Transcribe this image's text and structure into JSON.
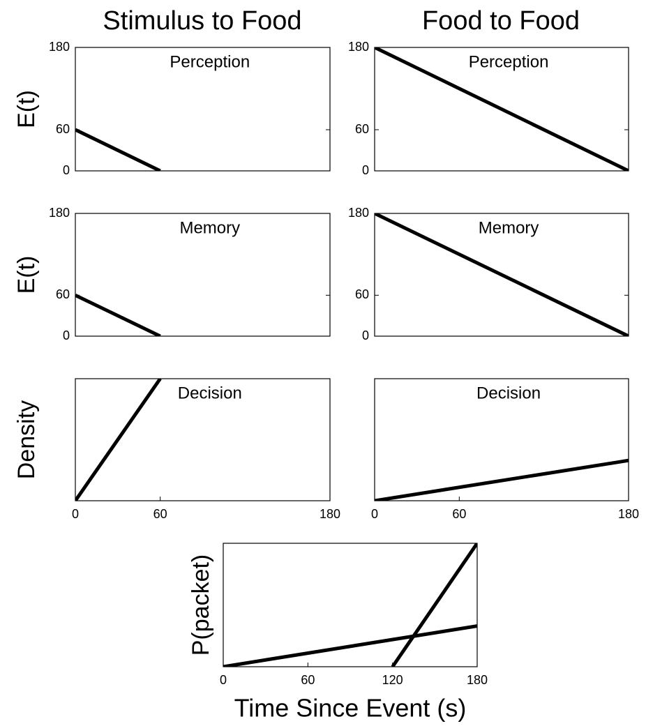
{
  "column_titles": [
    "Stimulus to Food",
    "Food to Food"
  ],
  "chart_data": [
    {
      "type": "line",
      "annotation": "Perception",
      "ylabel": "E(t)",
      "xlim": [
        0,
        180
      ],
      "ylim": [
        0,
        180
      ],
      "yticks": [
        0,
        60,
        180
      ],
      "series": [
        {
          "color": "#000000",
          "x": [
            0,
            60
          ],
          "values": [
            60,
            0
          ]
        }
      ]
    },
    {
      "type": "line",
      "annotation": "Perception",
      "xlim": [
        0,
        180
      ],
      "ylim": [
        0,
        180
      ],
      "yticks": [
        0,
        60,
        180
      ],
      "series": [
        {
          "color": "#000000",
          "x": [
            0,
            180
          ],
          "values": [
            180,
            0
          ]
        }
      ]
    },
    {
      "type": "line",
      "annotation": "Memory",
      "ylabel": "E(t)",
      "xlim": [
        0,
        180
      ],
      "ylim": [
        0,
        180
      ],
      "yticks": [
        0,
        60,
        180
      ],
      "series": [
        {
          "color": "#000000",
          "x": [
            0,
            60
          ],
          "values": [
            60,
            0
          ]
        }
      ]
    },
    {
      "type": "line",
      "annotation": "Memory",
      "xlim": [
        0,
        180
      ],
      "ylim": [
        0,
        180
      ],
      "yticks": [
        0,
        60,
        180
      ],
      "series": [
        {
          "color": "#000000",
          "x": [
            0,
            180
          ],
          "values": [
            180,
            0
          ]
        }
      ]
    },
    {
      "type": "line",
      "annotation": "Decision",
      "ylabel": "Density",
      "xlim": [
        0,
        180
      ],
      "ylim": [
        0,
        1
      ],
      "xticks": [
        0,
        60,
        180
      ],
      "series": [
        {
          "color": "#000000",
          "x": [
            0,
            60
          ],
          "values": [
            0,
            1
          ]
        }
      ]
    },
    {
      "type": "line",
      "annotation": "Decision",
      "xlim": [
        0,
        180
      ],
      "ylim": [
        0,
        1
      ],
      "xticks": [
        0,
        60,
        180
      ],
      "series": [
        {
          "color": "#000000",
          "x": [
            0,
            180
          ],
          "values": [
            0,
            0.33
          ]
        }
      ]
    },
    {
      "type": "line",
      "ylabel": "P(packet)",
      "xlabel": "Time Since Event (s)",
      "xlim": [
        0,
        180
      ],
      "ylim": [
        0,
        1
      ],
      "xticks": [
        0,
        60,
        120,
        180
      ],
      "series": [
        {
          "color": "#000000",
          "x": [
            0,
            180
          ],
          "values": [
            0,
            0.33
          ]
        },
        {
          "color": "#000000",
          "x": [
            120,
            180
          ],
          "values": [
            0,
            1
          ]
        }
      ]
    }
  ]
}
